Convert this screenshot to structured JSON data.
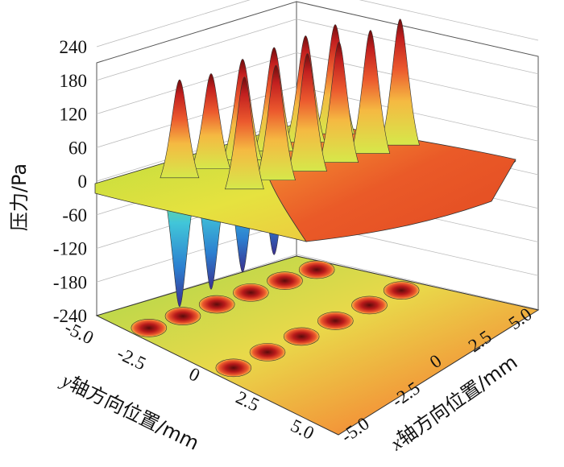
{
  "chart_data": {
    "type": "surface",
    "title": "",
    "zlabel": "压力/Pa",
    "xlabel_var": "x",
    "xlabel_rest": "轴方向位置/mm",
    "ylabel_var": "y",
    "ylabel_rest": "轴方向位置/mm",
    "zlim": [
      -240,
      240
    ],
    "xlim": [
      -5.0,
      5.0
    ],
    "ylim": [
      -5.0,
      5.0
    ],
    "z_ticks": [
      "240",
      "180",
      "120",
      "60",
      "0",
      "-60",
      "-120",
      "-180",
      "-240"
    ],
    "y_ticks": [
      "-5.0",
      "-2.5",
      "0",
      "2.5",
      "5.0"
    ],
    "x_ticks": [
      "-5.0",
      "-2.5",
      "0",
      "2.5",
      "5.0"
    ],
    "grid": true,
    "colormap": [
      "#3a2f8f",
      "#2c7fd0",
      "#41c6d9",
      "#7ed957",
      "#d6e84a",
      "#f5b942",
      "#ec5a2e",
      "#c21f1f",
      "#6d0d0d"
    ],
    "peaks": [
      {
        "x": -3.5,
        "y": -4.2,
        "value": 175
      },
      {
        "x": -3.5,
        "y": -2.5,
        "value": 170
      },
      {
        "x": -3.5,
        "y": -0.8,
        "value": 180
      },
      {
        "x": -3.5,
        "y": 0.9,
        "value": 185
      },
      {
        "x": -3.5,
        "y": 2.6,
        "value": 190
      },
      {
        "x": -3.5,
        "y": 4.2,
        "value": 195
      },
      {
        "x": 0,
        "y": -4.2,
        "value": 200
      },
      {
        "x": 0,
        "y": -2.5,
        "value": 205
      },
      {
        "x": 0,
        "y": -0.8,
        "value": 210
      },
      {
        "x": 0,
        "y": 0.9,
        "value": 215
      },
      {
        "x": 0,
        "y": 2.6,
        "value": 220
      },
      {
        "x": 0,
        "y": 4.2,
        "value": 225
      }
    ],
    "troughs": [
      {
        "x": -3.5,
        "y": -4.2,
        "value": -230
      },
      {
        "x": -3.5,
        "y": -2.5,
        "value": -215
      },
      {
        "x": -3.5,
        "y": -0.8,
        "value": -200
      },
      {
        "x": -3.5,
        "y": 0.9,
        "value": -185
      },
      {
        "x": -3.5,
        "y": 2.6,
        "value": -170
      },
      {
        "x": -3.5,
        "y": 4.2,
        "value": -160
      }
    ]
  }
}
